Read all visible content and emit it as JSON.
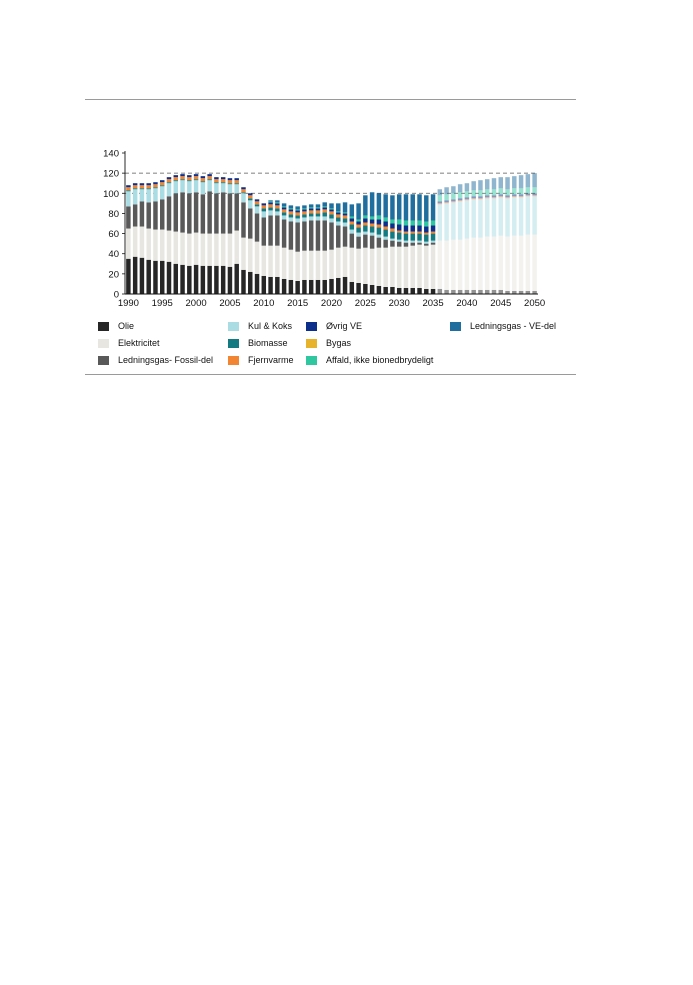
{
  "chart_data": {
    "type": "bar",
    "stacked": true,
    "projection_from": 2036,
    "x": [
      1990,
      1991,
      1992,
      1993,
      1994,
      1995,
      1996,
      1997,
      1998,
      1999,
      2000,
      2001,
      2002,
      2003,
      2004,
      2005,
      2006,
      2007,
      2008,
      2009,
      2010,
      2011,
      2012,
      2013,
      2014,
      2015,
      2016,
      2017,
      2018,
      2019,
      2020,
      2021,
      2022,
      2023,
      2024,
      2025,
      2026,
      2027,
      2028,
      2029,
      2030,
      2031,
      2032,
      2033,
      2034,
      2035,
      2036,
      2037,
      2038,
      2039,
      2040,
      2041,
      2042,
      2043,
      2044,
      2045,
      2046,
      2047,
      2048,
      2049,
      2050
    ],
    "xticks": [
      1990,
      1995,
      2000,
      2005,
      2010,
      2015,
      2020,
      2025,
      2030,
      2035,
      2040,
      2045,
      2050
    ],
    "ylim": [
      0,
      140
    ],
    "yticks": [
      0,
      20,
      40,
      60,
      80,
      100,
      120,
      140
    ],
    "reference_lines": [
      120,
      100
    ],
    "series": [
      {
        "name": "Olie",
        "color": "#262626",
        "values": [
          35,
          37,
          36,
          34,
          33,
          33,
          32,
          30,
          29,
          28,
          29,
          28,
          28,
          28,
          28,
          27,
          30,
          24,
          22,
          20,
          18,
          17,
          17,
          15,
          14,
          13,
          14,
          14,
          14,
          14,
          15,
          16,
          17,
          12,
          11,
          10,
          9,
          8,
          7,
          7,
          6,
          6,
          6,
          6,
          5,
          5,
          5,
          4,
          4,
          4,
          4,
          4,
          4,
          4,
          4,
          4,
          3,
          3,
          3,
          3,
          3
        ]
      },
      {
        "name": "Elektricitet",
        "color": "#e7e6e0",
        "values": [
          30,
          30,
          31,
          31,
          31,
          31,
          31,
          32,
          32,
          32,
          32,
          32,
          32,
          32,
          32,
          33,
          33,
          32,
          33,
          32,
          30,
          31,
          31,
          31,
          30,
          29,
          29,
          29,
          29,
          29,
          29,
          30,
          30,
          34,
          34,
          36,
          36,
          38,
          39,
          40,
          41,
          41,
          42,
          43,
          43,
          44,
          48,
          49,
          50,
          50,
          51,
          52,
          52,
          53,
          53,
          54,
          54,
          55,
          55,
          56,
          56
        ]
      },
      {
        "name": "Ledningsgas- Fossil-del",
        "color": "#595959",
        "values": [
          22,
          22,
          25,
          26,
          28,
          30,
          34,
          38,
          40,
          40,
          40,
          39,
          42,
          40,
          41,
          40,
          37,
          35,
          30,
          28,
          28,
          30,
          30,
          28,
          28,
          29,
          29,
          30,
          30,
          30,
          27,
          22,
          20,
          14,
          12,
          13,
          13,
          10,
          8,
          6,
          5,
          4,
          3,
          2,
          2,
          2,
          0,
          0,
          0,
          0,
          0,
          0,
          0,
          0,
          0,
          0,
          0,
          0,
          0,
          0,
          0
        ]
      },
      {
        "name": "Kul & Koks",
        "color": "#a9dce3",
        "values": [
          15,
          15,
          12,
          13,
          13,
          13,
          13,
          12,
          12,
          12,
          12,
          12,
          11,
          10,
          9,
          9,
          9,
          9,
          8,
          7,
          6,
          5,
          4,
          4,
          4,
          4,
          4,
          4,
          4,
          4,
          4,
          4,
          4,
          4,
          4,
          3,
          3,
          3,
          3,
          2,
          2,
          2,
          2,
          2,
          2,
          2,
          36,
          37,
          37,
          38,
          38,
          38,
          38,
          38,
          38,
          38,
          38,
          38,
          38,
          38,
          38
        ]
      },
      {
        "name": "Biomasse",
        "color": "#127a80",
        "values": [
          1,
          1,
          1,
          1,
          1,
          1,
          1,
          1,
          1,
          1,
          1,
          1,
          1,
          1,
          1,
          1,
          1,
          1,
          2,
          2,
          3,
          3,
          3,
          3,
          3,
          3,
          3,
          3,
          3,
          4,
          4,
          4,
          4,
          5,
          5,
          6,
          6,
          7,
          7,
          7,
          7,
          7,
          7,
          7,
          7,
          7,
          0,
          0,
          0,
          0,
          0,
          0,
          0,
          0,
          0,
          0,
          0,
          0,
          0,
          0,
          0
        ]
      },
      {
        "name": "Fjernvarme",
        "color": "#f28532",
        "values": [
          3,
          3,
          3,
          3,
          3,
          3,
          3,
          3,
          3,
          3,
          3,
          3,
          3,
          3,
          3,
          3,
          3,
          3,
          3,
          3,
          3,
          3,
          3,
          3,
          3,
          3,
          3,
          3,
          3,
          3,
          3,
          3,
          3,
          3,
          3,
          3,
          3,
          3,
          3,
          3,
          2,
          2,
          2,
          2,
          2,
          2,
          1,
          1,
          1,
          1,
          1,
          1,
          1,
          1,
          1,
          1,
          1,
          1,
          1,
          1,
          1
        ]
      },
      {
        "name": "Øvrig VE",
        "color": "#0d2f8c",
        "values": [
          2,
          2,
          2,
          2,
          2,
          2,
          2,
          2,
          2,
          2,
          2,
          2,
          2,
          2,
          2,
          2,
          2,
          2,
          2,
          2,
          2,
          2,
          2,
          2,
          2,
          2,
          2,
          2,
          2,
          2,
          2,
          2,
          2,
          3,
          3,
          4,
          4,
          5,
          5,
          5,
          6,
          6,
          6,
          6,
          6,
          6,
          2,
          2,
          2,
          2,
          2,
          2,
          2,
          2,
          2,
          2,
          2,
          2,
          2,
          2,
          2
        ]
      },
      {
        "name": "Bygas",
        "color": "#e6b32a",
        "values": [
          0,
          0,
          0,
          0,
          0,
          0,
          0,
          0,
          0,
          0,
          0,
          0,
          0,
          0,
          0,
          0,
          0,
          0,
          0,
          0,
          0,
          0,
          0,
          0,
          0,
          0,
          0,
          0,
          0,
          0,
          0,
          0,
          0,
          0,
          0,
          0,
          0,
          0,
          0,
          0,
          0,
          0,
          0,
          0,
          0,
          0,
          0,
          0,
          0,
          0,
          0,
          0,
          0,
          0,
          0,
          0,
          0,
          0,
          0,
          0,
          0
        ]
      },
      {
        "name": "Affald, ikke bionedbrydeligt",
        "color": "#2fc7a0",
        "values": [
          0,
          0,
          0,
          0,
          0,
          0,
          0,
          0,
          0,
          0,
          0,
          0,
          0,
          0,
          0,
          0,
          0,
          0,
          0,
          0,
          0,
          1,
          1,
          1,
          1,
          1,
          1,
          1,
          1,
          1,
          1,
          1,
          1,
          2,
          2,
          3,
          3,
          4,
          4,
          4,
          5,
          5,
          5,
          5,
          5,
          5,
          6,
          6,
          6,
          6,
          6,
          6,
          6,
          6,
          6,
          6,
          6,
          6,
          6,
          6,
          6
        ]
      },
      {
        "name": "Ledningsgas - VE-del",
        "color": "#1f6e9e",
        "values": [
          0,
          0,
          0,
          0,
          0,
          0,
          0,
          0,
          0,
          0,
          0,
          0,
          0,
          0,
          0,
          0,
          0,
          0,
          0,
          0,
          0,
          1,
          2,
          3,
          3,
          3,
          3,
          3,
          3,
          4,
          5,
          8,
          10,
          12,
          16,
          20,
          24,
          22,
          23,
          24,
          25,
          26,
          26,
          26,
          26,
          26,
          6,
          7,
          7,
          8,
          8,
          9,
          10,
          10,
          11,
          11,
          12,
          12,
          13,
          13,
          14
        ]
      }
    ]
  },
  "legend": {
    "items": [
      {
        "label": "Olie",
        "color": "#262626"
      },
      {
        "label": "Elektricitet",
        "color": "#e7e6e0"
      },
      {
        "label": "Ledningsgas- Fossil-del",
        "color": "#595959"
      },
      {
        "label": "Kul & Koks",
        "color": "#a9dce3"
      },
      {
        "label": "Biomasse",
        "color": "#127a80"
      },
      {
        "label": "Fjernvarme",
        "color": "#f28532"
      },
      {
        "label": "Øvrig VE",
        "color": "#0d2f8c"
      },
      {
        "label": "Bygas",
        "color": "#e6b32a"
      },
      {
        "label": "Affald, ikke bionedbrydeligt",
        "color": "#2fc7a0"
      },
      {
        "label": "Ledningsgas - VE-del",
        "color": "#1f6e9e"
      }
    ]
  }
}
